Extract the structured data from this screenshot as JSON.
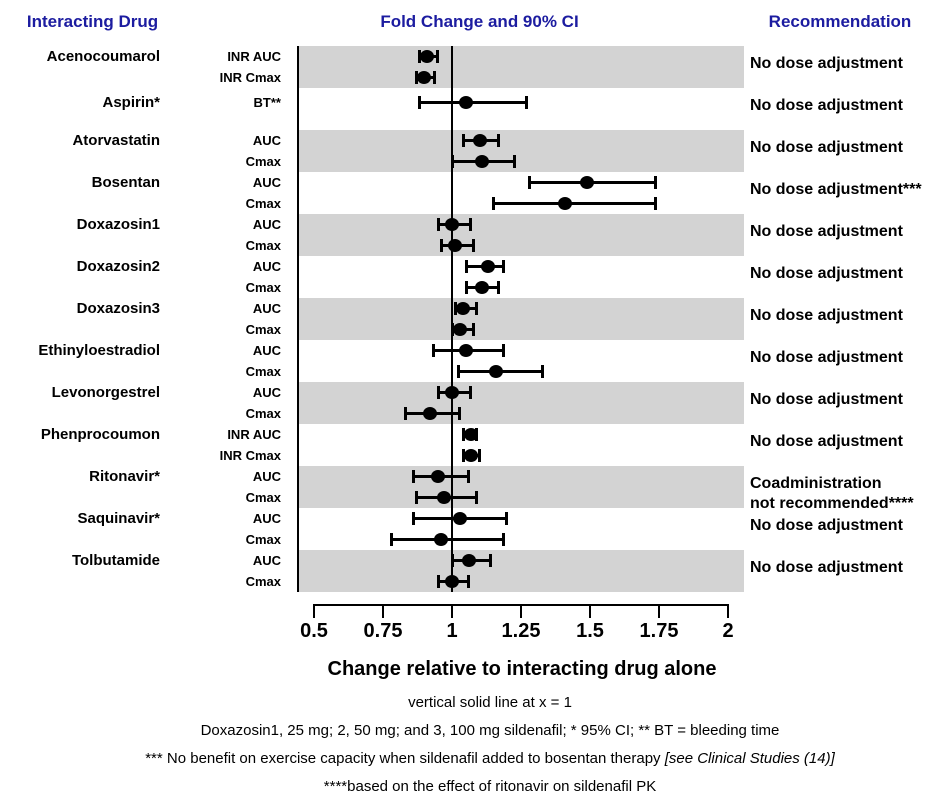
{
  "header": {
    "left": "Interacting Drug",
    "center": "Fold Change and 90% CI",
    "right": "Recommendation"
  },
  "colors": {
    "header_blue": "#1C1CA0",
    "band_gray": "#D3D3D3",
    "marker_black": "#000000"
  },
  "chart_data": {
    "type": "forest",
    "title": "Fold Change and 90% CI",
    "xlabel": "Change relative to interacting drug alone",
    "x_axis": {
      "range": [
        0.5,
        2
      ],
      "ticks": [
        0.5,
        0.75,
        1,
        1.25,
        1.5,
        1.75,
        2
      ],
      "tick_labels": [
        "0.5",
        "0.75",
        "1",
        "1.25",
        "1.5",
        "1.75",
        "2"
      ],
      "reference_line_x": 1
    },
    "groups": [
      {
        "drug": "Acenocoumarol",
        "shaded": true,
        "recommendation": [
          "No dose adjustment"
        ],
        "rows": [
          {
            "measure": "INR AUC",
            "estimate": 0.91,
            "ci_low": 0.88,
            "ci_high": 0.95
          },
          {
            "measure": "INR Cmax",
            "estimate": 0.9,
            "ci_low": 0.87,
            "ci_high": 0.94
          }
        ]
      },
      {
        "drug": "Aspirin*",
        "shaded": false,
        "recommendation": [
          "No dose adjustment"
        ],
        "rows": [
          {
            "measure": "BT**",
            "estimate": 1.05,
            "ci_low": 0.88,
            "ci_high": 1.27
          }
        ]
      },
      {
        "drug": "Atorvastatin",
        "shaded": true,
        "recommendation": [
          "No dose adjustment"
        ],
        "rows": [
          {
            "measure": "AUC",
            "estimate": 1.1,
            "ci_low": 1.04,
            "ci_high": 1.17
          },
          {
            "measure": "Cmax",
            "estimate": 1.11,
            "ci_low": 1.0,
            "ci_high": 1.23
          }
        ]
      },
      {
        "drug": "Bosentan",
        "shaded": false,
        "recommendation": [
          "No dose adjustment***"
        ],
        "rows": [
          {
            "measure": "AUC",
            "estimate": 1.49,
            "ci_low": 1.28,
            "ci_high": 1.74
          },
          {
            "measure": "Cmax",
            "estimate": 1.41,
            "ci_low": 1.15,
            "ci_high": 1.74
          }
        ]
      },
      {
        "drug": "Doxazosin1",
        "shaded": true,
        "recommendation": [
          "No dose adjustment"
        ],
        "rows": [
          {
            "measure": "AUC",
            "estimate": 1.0,
            "ci_low": 0.95,
            "ci_high": 1.07
          },
          {
            "measure": "Cmax",
            "estimate": 1.01,
            "ci_low": 0.96,
            "ci_high": 1.08
          }
        ]
      },
      {
        "drug": "Doxazosin2",
        "shaded": false,
        "recommendation": [
          "No dose adjustment"
        ],
        "rows": [
          {
            "measure": "AUC",
            "estimate": 1.13,
            "ci_low": 1.05,
            "ci_high": 1.19
          },
          {
            "measure": "Cmax",
            "estimate": 1.11,
            "ci_low": 1.05,
            "ci_high": 1.17
          }
        ]
      },
      {
        "drug": "Doxazosin3",
        "shaded": true,
        "recommendation": [
          "No dose adjustment"
        ],
        "rows": [
          {
            "measure": "AUC",
            "estimate": 1.04,
            "ci_low": 1.01,
            "ci_high": 1.09
          },
          {
            "measure": "Cmax",
            "estimate": 1.03,
            "ci_low": 1.0,
            "ci_high": 1.08
          }
        ]
      },
      {
        "drug": "Ethinyloestradiol",
        "shaded": false,
        "recommendation": [
          "No dose adjustment"
        ],
        "rows": [
          {
            "measure": "AUC",
            "estimate": 1.05,
            "ci_low": 0.93,
            "ci_high": 1.19
          },
          {
            "measure": "Cmax",
            "estimate": 1.16,
            "ci_low": 1.02,
            "ci_high": 1.33
          }
        ]
      },
      {
        "drug": "Levonorgestrel",
        "shaded": true,
        "recommendation": [
          "No dose adjustment"
        ],
        "rows": [
          {
            "measure": "AUC",
            "estimate": 1.0,
            "ci_low": 0.95,
            "ci_high": 1.07
          },
          {
            "measure": "Cmax",
            "estimate": 0.92,
            "ci_low": 0.83,
            "ci_high": 1.03
          }
        ]
      },
      {
        "drug": "Phenprocoumon",
        "shaded": false,
        "recommendation": [
          "No dose adjustment"
        ],
        "rows": [
          {
            "measure": "INR AUC",
            "estimate": 1.07,
            "ci_low": 1.04,
            "ci_high": 1.09
          },
          {
            "measure": "INR Cmax",
            "estimate": 1.07,
            "ci_low": 1.04,
            "ci_high": 1.1
          }
        ]
      },
      {
        "drug": "Ritonavir*",
        "shaded": true,
        "recommendation": [
          "Coadministration",
          "not recommended****"
        ],
        "rows": [
          {
            "measure": "AUC",
            "estimate": 0.95,
            "ci_low": 0.86,
            "ci_high": 1.06
          },
          {
            "measure": "Cmax",
            "estimate": 0.97,
            "ci_low": 0.87,
            "ci_high": 1.09
          }
        ]
      },
      {
        "drug": "Saquinavir*",
        "shaded": false,
        "recommendation": [
          "No dose adjustment"
        ],
        "rows": [
          {
            "measure": "AUC",
            "estimate": 1.03,
            "ci_low": 0.86,
            "ci_high": 1.2
          },
          {
            "measure": "Cmax",
            "estimate": 0.96,
            "ci_low": 0.78,
            "ci_high": 1.19
          }
        ]
      },
      {
        "drug": "Tolbutamide",
        "shaded": true,
        "recommendation": [
          "No dose adjustment"
        ],
        "rows": [
          {
            "measure": "AUC",
            "estimate": 1.06,
            "ci_low": 1.0,
            "ci_high": 1.14
          },
          {
            "measure": "Cmax",
            "estimate": 1.0,
            "ci_low": 0.95,
            "ci_high": 1.06
          }
        ]
      }
    ]
  },
  "axis_title": "Change relative to interacting drug alone",
  "footnotes": {
    "line1": "vertical solid line at x = 1",
    "line2": "Doxazosin1, 25 mg; 2, 50 mg; and 3, 100 mg sildenafil; * 95% CI; ** BT = bleeding time",
    "line3_text": "*** No benefit on exercise capacity when sildenafil added to bosentan therapy  ",
    "line3_italic": "[see Clinical Studies (14)]",
    "line4": "****based on the effect of ritonavir on sildenafil PK"
  }
}
